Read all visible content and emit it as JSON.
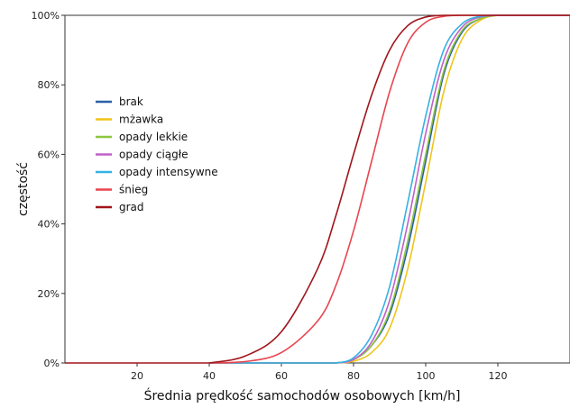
{
  "chart_data": {
    "type": "line",
    "title": "",
    "xlabel": "Średnia prędkość samochodów osobowych [km/h]",
    "ylabel": "częstość",
    "xlim": [
      0,
      140
    ],
    "ylim": [
      0,
      1
    ],
    "x_ticks": [
      20,
      40,
      60,
      80,
      100,
      120
    ],
    "x_tick_labels": [
      "20",
      "40",
      "60",
      "80",
      "100",
      "120"
    ],
    "y_ticks": [
      0,
      0.2,
      0.4,
      0.6,
      0.8,
      1.0
    ],
    "y_tick_labels": [
      "0%",
      "20%",
      "40%",
      "60%",
      "80%",
      "100%"
    ],
    "grid": false,
    "legend_position": "left",
    "x": [
      40,
      50,
      60,
      70,
      75,
      80,
      85,
      90,
      95,
      100,
      105,
      110,
      115,
      120,
      125,
      140
    ],
    "series": [
      {
        "name": "brak",
        "color": "#2b5fa8",
        "values": [
          0,
          0,
          0,
          0,
          0,
          0.01,
          0.05,
          0.14,
          0.33,
          0.58,
          0.83,
          0.95,
          0.99,
          1.0,
          1.0,
          1.0
        ]
      },
      {
        "name": "mżawka",
        "color": "#f0c419",
        "values": [
          0,
          0,
          0,
          0,
          0,
          0.005,
          0.03,
          0.1,
          0.27,
          0.52,
          0.78,
          0.93,
          0.985,
          1.0,
          1.0,
          1.0
        ]
      },
      {
        "name": "opady lekkie",
        "color": "#8dc63f",
        "values": [
          0,
          0,
          0,
          0,
          0,
          0.01,
          0.05,
          0.15,
          0.35,
          0.6,
          0.84,
          0.955,
          0.99,
          1.0,
          1.0,
          1.0
        ]
      },
      {
        "name": "opady ciągłe",
        "color": "#c060c8",
        "values": [
          0,
          0,
          0,
          0,
          0,
          0.01,
          0.06,
          0.18,
          0.4,
          0.66,
          0.87,
          0.965,
          0.995,
          1.0,
          1.0,
          1.0
        ]
      },
      {
        "name": "opady intensywne",
        "color": "#35b1e3",
        "values": [
          0,
          0,
          0,
          0,
          0,
          0.015,
          0.08,
          0.22,
          0.46,
          0.71,
          0.9,
          0.975,
          0.997,
          1.0,
          1.0,
          1.0
        ]
      },
      {
        "name": "śnieg",
        "color": "#e8454f",
        "values": [
          0,
          0.004,
          0.03,
          0.12,
          0.22,
          0.38,
          0.58,
          0.78,
          0.92,
          0.98,
          0.997,
          1.0,
          1.0,
          1.0,
          1.0,
          1.0
        ]
      },
      {
        "name": "grad",
        "color": "#a0151b",
        "values": [
          0,
          0.02,
          0.09,
          0.27,
          0.42,
          0.6,
          0.77,
          0.9,
          0.97,
          0.995,
          1.0,
          1.0,
          1.0,
          1.0,
          1.0,
          1.0
        ]
      }
    ]
  }
}
